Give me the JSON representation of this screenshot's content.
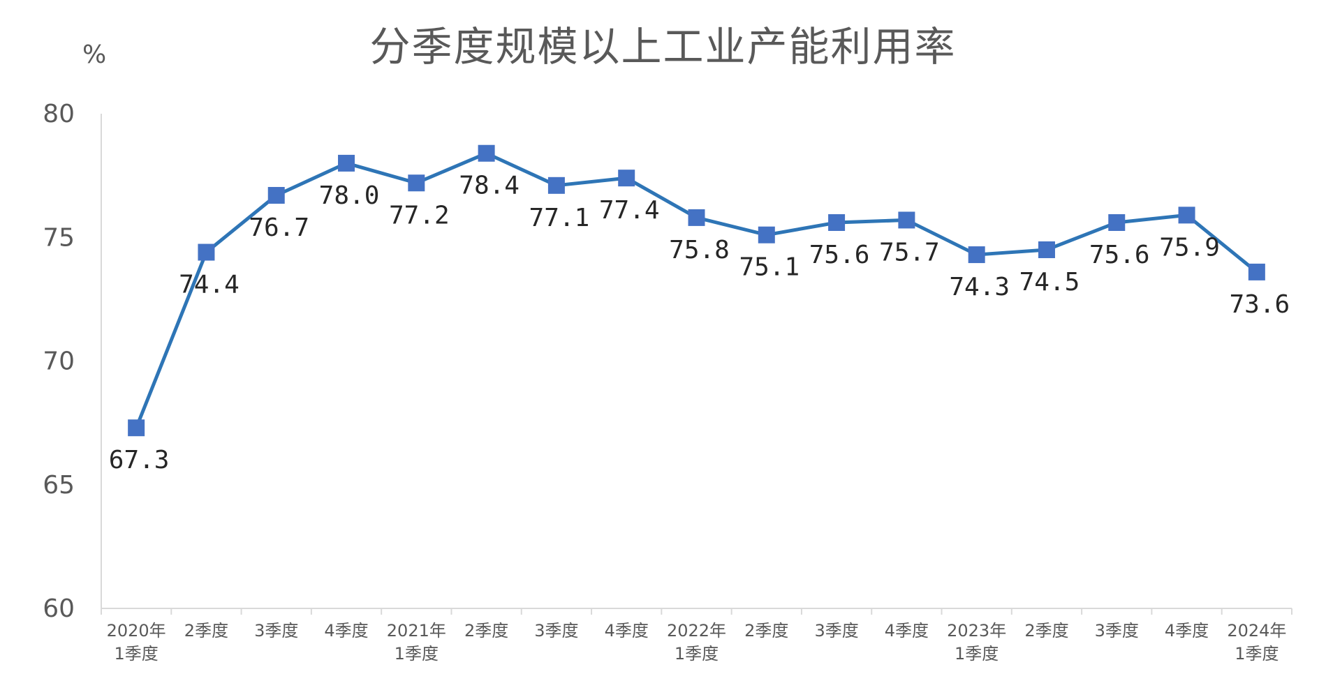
{
  "chart_data": {
    "type": "line",
    "title": "分季度规模以上工业产能利用率",
    "unit": "%",
    "xlabel": "",
    "ylabel": "%",
    "ylim": [
      60,
      80
    ],
    "yticks": [
      "60",
      "65",
      "70",
      "75",
      "80"
    ],
    "grid": false,
    "legend": "none",
    "categories": [
      [
        "2020年",
        "1季度"
      ],
      [
        "2季度"
      ],
      [
        "3季度"
      ],
      [
        "4季度"
      ],
      [
        "2021年",
        "1季度"
      ],
      [
        "2季度"
      ],
      [
        "3季度"
      ],
      [
        "4季度"
      ],
      [
        "2022年",
        "1季度"
      ],
      [
        "2季度"
      ],
      [
        "3季度"
      ],
      [
        "4季度"
      ],
      [
        "2023年",
        "1季度"
      ],
      [
        "2季度"
      ],
      [
        "3季度"
      ],
      [
        "4季度"
      ],
      [
        "2024年",
        "1季度"
      ]
    ],
    "values": [
      67.3,
      74.4,
      76.7,
      78.0,
      77.2,
      78.4,
      77.1,
      77.4,
      75.8,
      75.1,
      75.6,
      75.7,
      74.3,
      74.5,
      75.6,
      75.9,
      73.6
    ],
    "data_labels": [
      "67.3",
      "74.4",
      "76.7",
      "78.0",
      "77.2",
      "78.4",
      "77.1",
      "77.4",
      "75.8",
      "75.1",
      "75.6",
      "75.7",
      "74.3",
      "74.5",
      "75.6",
      "75.9",
      "73.6"
    ],
    "series_color": "#2E75B6",
    "marker_color": "#4472C4",
    "axis_color": "#D9D9D9"
  }
}
